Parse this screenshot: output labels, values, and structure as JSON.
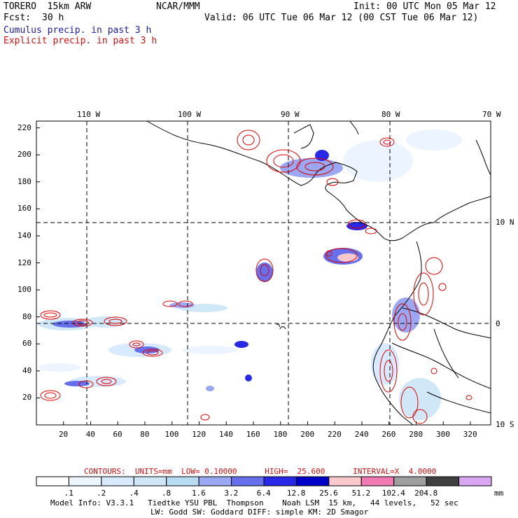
{
  "header": {
    "model": "TORERO  15km ARW",
    "org": "NCAR/MMM",
    "init": "Init: 00 UTC Mon 05 Mar 12",
    "fcst_label": "Fcst:",
    "fcst_value": "30 h",
    "valid": "Valid: 06 UTC Tue 06 Mar 12 (00 CST Tue 06 Mar 12)",
    "field1": "Cumulus precip. in past 3 h",
    "field2": "Explicit precip. in past 3 h"
  },
  "colors": {
    "field1": "#1a1aa8",
    "field2": "#d01010",
    "contour": "#e00000",
    "grid": "#000000"
  },
  "map": {
    "lon_labels": [
      "110 W",
      "100 W",
      "90 W",
      "80 W",
      "70 W"
    ],
    "lat_labels": [
      "10 N",
      "0",
      "10 S"
    ],
    "x_ticks": [
      "20",
      "40",
      "60",
      "80",
      "100",
      "120",
      "140",
      "160",
      "180",
      "200",
      "220",
      "240",
      "260",
      "280",
      "300",
      "320"
    ],
    "y_ticks": [
      "20",
      "40",
      "60",
      "80",
      "100",
      "120",
      "140",
      "160",
      "180",
      "200",
      "220"
    ],
    "x_range": [
      0,
      335
    ],
    "y_range": [
      0,
      225
    ]
  },
  "contours": {
    "text": "CONTOURS:  UNITS=mm  LOW= 0.10000      HIGH=  25.600      INTERVAL=X  4.0000"
  },
  "legend": {
    "labels": [
      ".1",
      ".2",
      ".4",
      ".8",
      "1.6",
      "3.2",
      "6.4",
      "12.8",
      "25.6",
      "51.2",
      "102.4",
      "204.8"
    ],
    "unit": "mm",
    "colors": [
      "#ffffff",
      "#ecf4ff",
      "#d8eaff",
      "#cfe7f7",
      "#b9dbf2",
      "#9aa8f4",
      "#6670ec",
      "#2828e6",
      "#0000c8",
      "#f8c8cc",
      "#f07ab4",
      "#9e9e9e",
      "#404040",
      "#d9a6f2"
    ]
  },
  "footer": {
    "line1": "Model Info: V3.3.1   Tiedtke YSU PBL  Thompson    Noah LSM  15 km,   44 levels,   52 sec",
    "line2": "LW: Godd SW: Goddard DIFF: simple KM: 2D Smagor"
  }
}
